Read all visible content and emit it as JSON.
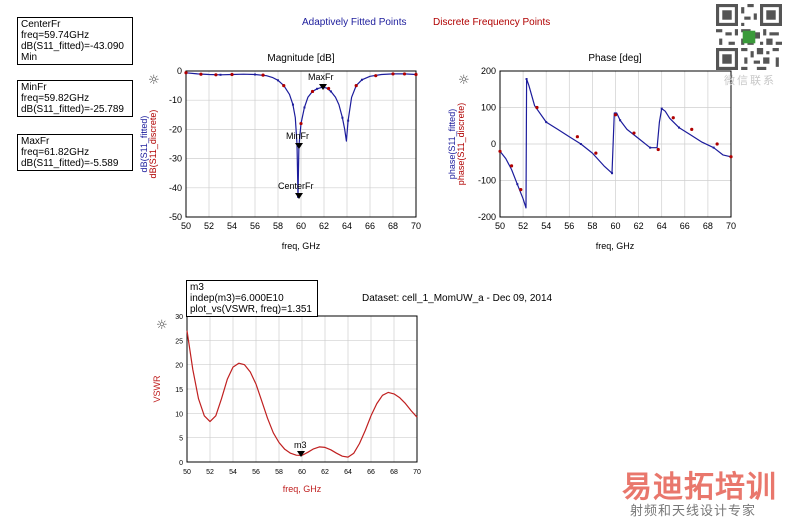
{
  "legend": {
    "fitted_label": "Adaptively Fitted Points",
    "fitted_color": "#1c1c9c",
    "discrete_label": "Discrete Frequency Points",
    "discrete_color": "#b00000"
  },
  "markers": {
    "center": {
      "name": "CenterFr",
      "freq": "freq=59.74GHz",
      "value": "dB(S11_fitted)=-43.090",
      "extra": "Min"
    },
    "min": {
      "name": "MinFr",
      "freq": "freq=59.82GHz",
      "value": "dB(S11_fitted)=-25.789"
    },
    "max": {
      "name": "MaxFr",
      "freq": "freq=61.82GHz",
      "value": "dB(S11_fitted)=-5.589"
    },
    "m3": {
      "name": "m3",
      "indep": "indep(m3)=6.000E10",
      "value": "plot_vs(VSWR, freq)=1.351"
    }
  },
  "dataset_label": "Dataset: cell_1_MomUW_a - Dec 09, 2014",
  "watermark": {
    "main": "易迪拓培训",
    "sub": "射频和天线设计专家",
    "qr_caption": "微信联系"
  },
  "chart_data": [
    {
      "type": "line",
      "title": "Magnitude [dB]",
      "xlabel": "freq, GHz",
      "ylabel_fitted": "dB(S11_fitted)",
      "ylabel_discrete": "dB(S11_discrete)",
      "xlim": [
        50,
        70
      ],
      "ylim": [
        -50,
        0
      ],
      "xticks": [
        "50",
        "52",
        "54",
        "56",
        "58",
        "60",
        "62",
        "64",
        "66",
        "68",
        "70"
      ],
      "yticks": [
        "0",
        "-10",
        "-20",
        "-30",
        "-40",
        "-50"
      ],
      "grid": true,
      "series": [
        {
          "name": "Adaptively Fitted Points",
          "color": "#1c1c9c",
          "x": [
            50,
            51,
            52,
            53,
            54,
            55,
            56,
            57,
            57.5,
            58,
            58.5,
            59,
            59.3,
            59.5,
            59.65,
            59.74,
            59.82,
            60,
            60.3,
            60.6,
            61,
            61.4,
            61.82,
            62.2,
            62.6,
            63,
            63.3,
            63.6,
            63.8,
            63.95,
            64.1,
            64.4,
            64.8,
            65.3,
            66,
            67,
            68,
            69,
            70
          ],
          "y": [
            -0.6,
            -1,
            -1.2,
            -1.3,
            -1.2,
            -1.1,
            -1.2,
            -1.6,
            -2.2,
            -3.2,
            -5,
            -8,
            -11.5,
            -16,
            -25,
            -43.09,
            -25.789,
            -18,
            -12.5,
            -9,
            -7,
            -6.1,
            -5.589,
            -5.8,
            -7,
            -9,
            -11.5,
            -16,
            -20,
            -24,
            -17,
            -9,
            -5,
            -3,
            -1.8,
            -1.2,
            -1,
            -1,
            -1.2
          ]
        },
        {
          "name": "Discrete Frequency Points",
          "color": "#b00000",
          "x": [
            50,
            51.3,
            52.6,
            54,
            56.7,
            58.5,
            60,
            61,
            62.4,
            64.8,
            66.5,
            68,
            69,
            70
          ],
          "y": [
            -0.6,
            -1.1,
            -1.3,
            -1.2,
            -1.4,
            -5,
            -18,
            -7,
            -6,
            -5,
            -1.6,
            -1,
            -1,
            -1.2
          ]
        }
      ],
      "marker_labels": [
        "MaxFr",
        "MinFr",
        "CenterFr"
      ]
    },
    {
      "type": "line",
      "title": "Phase [deg]",
      "xlabel": "freq, GHz",
      "ylabel_fitted": "phase(S11_fitted)",
      "ylabel_discrete": "phase(S11_discrete)",
      "xlim": [
        50,
        70
      ],
      "ylim": [
        -200,
        200
      ],
      "xticks": [
        "50",
        "52",
        "54",
        "56",
        "58",
        "60",
        "62",
        "64",
        "66",
        "68",
        "70"
      ],
      "yticks": [
        "200",
        "100",
        "0",
        "-100",
        "-200"
      ],
      "grid": true,
      "series": [
        {
          "name": "Adaptively Fitted Points",
          "color": "#1c1c9c",
          "x": [
            50,
            50.5,
            51,
            51.5,
            52,
            52.25,
            52.3,
            52.5,
            53,
            54,
            55,
            56,
            57,
            58,
            59,
            59.7,
            59.9,
            60.1,
            60.4,
            61,
            62,
            63,
            63.6,
            63.8,
            64,
            64.3,
            64.7,
            65.5,
            66.5,
            67.5,
            68.5,
            69.3,
            70
          ],
          "y": [
            -20,
            -40,
            -70,
            -110,
            -150,
            -175,
            178,
            160,
            105,
            60,
            40,
            20,
            0,
            -25,
            -60,
            -80,
            85,
            85,
            65,
            40,
            15,
            -10,
            -10,
            60,
            97,
            90,
            70,
            45,
            25,
            5,
            -10,
            -30,
            -35
          ]
        },
        {
          "name": "Discrete Frequency Points",
          "color": "#b00000",
          "x": [
            50,
            51,
            51.8,
            53.2,
            56.7,
            58.3,
            60,
            61.6,
            63.7,
            65,
            66.6,
            68.8,
            70
          ],
          "y": [
            -20,
            -60,
            -125,
            100,
            20,
            -25,
            80,
            30,
            -15,
            72,
            40,
            0,
            -35
          ]
        }
      ]
    },
    {
      "type": "line",
      "title": "",
      "xlabel": "freq, GHz",
      "ylabel": "VSWR",
      "xlim": [
        50,
        70
      ],
      "ylim": [
        0,
        30
      ],
      "xticks": [
        "50",
        "52",
        "54",
        "56",
        "58",
        "60",
        "62",
        "64",
        "66",
        "68",
        "70"
      ],
      "yticks": [
        "30",
        "25",
        "20",
        "15",
        "10",
        "5",
        "0"
      ],
      "grid": true,
      "series": [
        {
          "color": "#c02020",
          "x": [
            50,
            50.5,
            51,
            51.5,
            52,
            52.5,
            53,
            53.5,
            54,
            54.5,
            55,
            55.5,
            56,
            56.5,
            57,
            57.5,
            58,
            58.5,
            59,
            59.5,
            60,
            60.5,
            61,
            61.5,
            62,
            62.5,
            63,
            63.5,
            64,
            64.5,
            65,
            65.5,
            66,
            66.5,
            67,
            67.5,
            68,
            68.5,
            69,
            69.5,
            70
          ],
          "y": [
            27,
            19,
            13,
            9.5,
            8.3,
            9.5,
            13,
            17,
            19.5,
            20.3,
            20,
            18.5,
            16,
            12.5,
            9,
            6,
            4,
            2.6,
            1.8,
            1.4,
            1.35,
            2,
            2.7,
            3.1,
            3,
            2.5,
            1.8,
            1.2,
            1,
            1.8,
            3.8,
            6.5,
            9.5,
            12,
            13.7,
            14.3,
            14,
            13.2,
            12,
            10.5,
            9.2
          ]
        }
      ],
      "marker_labels": [
        "m3"
      ]
    }
  ]
}
